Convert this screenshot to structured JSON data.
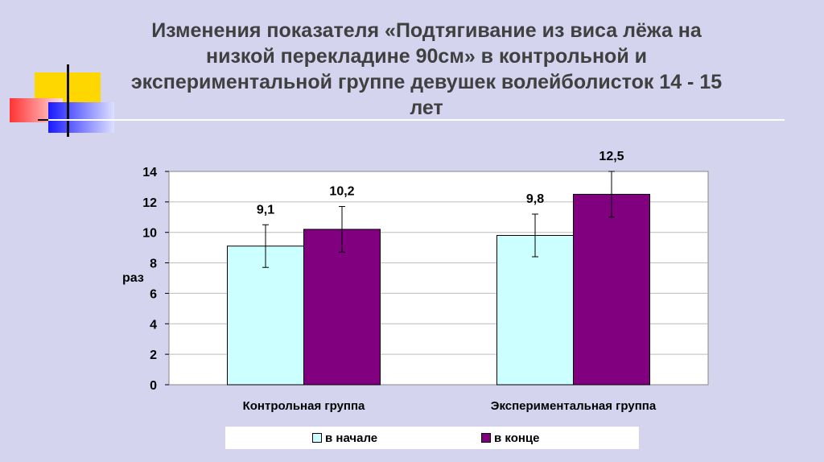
{
  "title": "Изменения показателя «Подтягивание из виса лёжа на низкой перекладине 90см» в контрольной и экспериментальной группе девушек волейболисток 14 - 15 лет",
  "colors": {
    "background": "#d4d4ee",
    "series1": "#ccffff",
    "series2": "#800080"
  },
  "chart_data": {
    "type": "bar",
    "categories": [
      "Контрольная группа",
      "Экспериментальная группа"
    ],
    "series": [
      {
        "name": "в начале",
        "values": [
          9.1,
          9.8
        ],
        "error": [
          1.4,
          1.4
        ],
        "labels": [
          "9,1",
          "9,8"
        ],
        "color": "#ccffff"
      },
      {
        "name": "в конце",
        "values": [
          10.2,
          12.5
        ],
        "error": [
          1.5,
          1.5
        ],
        "labels": [
          "10,2",
          "12,5"
        ],
        "color": "#800080"
      }
    ],
    "ylabel": "раз",
    "ylim": [
      0,
      14
    ],
    "yticks": [
      "0",
      "2",
      "4",
      "6",
      "8",
      "10",
      "12",
      "14"
    ],
    "grid": true,
    "legend_position": "bottom"
  }
}
